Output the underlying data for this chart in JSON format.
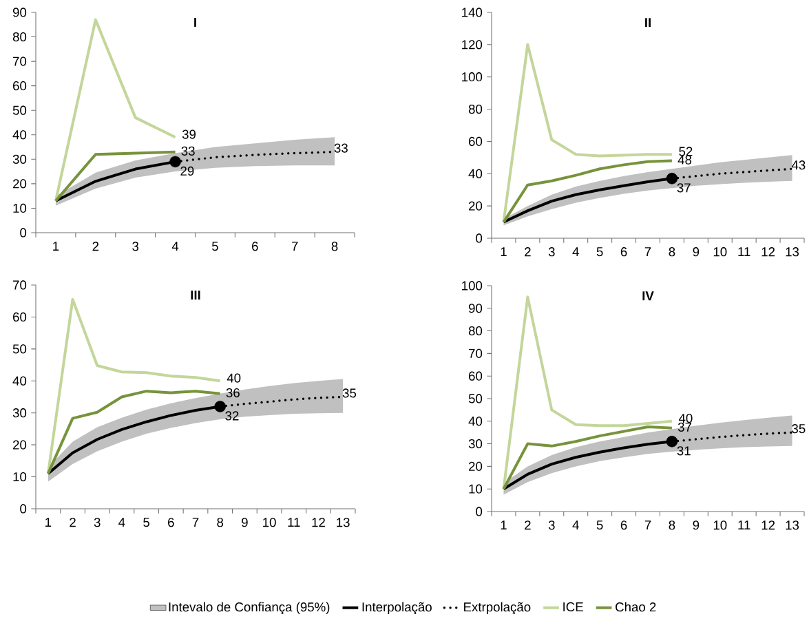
{
  "chart_data": [
    {
      "type": "line",
      "title": "I",
      "categories": [
        "1",
        "2",
        "3",
        "4",
        "5",
        "6",
        "7",
        "8"
      ],
      "ylim": [
        0,
        90
      ],
      "yticks": [
        0,
        10,
        20,
        30,
        40,
        50,
        60,
        70,
        80,
        90
      ],
      "series": [
        {
          "type": "line",
          "color": "#c0c0c0",
          "values": [
            null,
            null,
            null,
            null,
            null,
            null,
            null,
            null
          ],
          "lower": [
            11,
            18,
            22.5,
            25,
            26.5,
            27.2,
            27.5,
            27.5
          ],
          "upper": [
            15,
            24.5,
            29.5,
            32.5,
            35,
            36.5,
            38,
            39
          ]
        },
        {
          "type": "line",
          "color": "#000000",
          "values": [
            13,
            21,
            26,
            29,
            null,
            null,
            null,
            null
          ]
        },
        {
          "type": "line",
          "color": "#000000",
          "line_style": "dotted",
          "values": [
            null,
            null,
            null,
            29,
            30.8,
            31.8,
            32.5,
            33
          ]
        },
        {
          "type": "line",
          "color": "#c3d69b",
          "values": [
            13,
            87,
            47,
            39,
            null,
            null,
            null,
            null
          ]
        },
        {
          "type": "line",
          "color": "#77933c",
          "values": [
            13,
            32,
            32.5,
            33,
            null,
            null,
            null,
            null
          ]
        },
        {
          "type": "scatter",
          "color": "#000000",
          "marker": "circle",
          "values": [
            null,
            null,
            null,
            29,
            null,
            null,
            null,
            null
          ]
        }
      ],
      "annotations": [
        {
          "text": "39",
          "x": "4",
          "y": 39
        },
        {
          "text": "33",
          "x": "4",
          "y": 33
        },
        {
          "text": "29",
          "x": "4",
          "y": 29
        },
        {
          "text": "33",
          "x": "8",
          "y": 33
        }
      ]
    },
    {
      "type": "line",
      "title": "II",
      "categories": [
        "1",
        "2",
        "3",
        "4",
        "5",
        "6",
        "7",
        "8",
        "9",
        "10",
        "11",
        "12",
        "13"
      ],
      "ylim": [
        0,
        140
      ],
      "yticks": [
        0,
        20,
        40,
        60,
        80,
        100,
        120,
        140
      ],
      "series": [
        {
          "type": "line",
          "color": "#c0c0c0",
          "values": [
            null,
            null,
            null,
            null,
            null,
            null,
            null,
            null,
            null,
            null,
            null,
            null,
            null
          ],
          "lower": [
            8,
            13.5,
            18,
            22,
            25,
            27.5,
            29.5,
            31,
            32.5,
            33.5,
            34.3,
            35,
            35.5
          ],
          "upper": [
            12,
            20,
            27,
            32,
            35.5,
            38.5,
            41,
            43,
            45,
            47,
            48.5,
            50,
            51.5
          ]
        },
        {
          "type": "line",
          "color": "#000000",
          "values": [
            10,
            17,
            23,
            27,
            30,
            32.5,
            35,
            37,
            null,
            null,
            null,
            null,
            null
          ]
        },
        {
          "type": "line",
          "color": "#000000",
          "line_style": "dotted",
          "values": [
            null,
            null,
            null,
            null,
            null,
            null,
            null,
            37,
            38.5,
            40,
            41,
            42,
            43
          ]
        },
        {
          "type": "line",
          "color": "#c3d69b",
          "values": [
            10,
            120,
            61,
            52,
            51,
            51.5,
            52,
            52,
            null,
            null,
            null,
            null,
            null
          ]
        },
        {
          "type": "line",
          "color": "#77933c",
          "values": [
            10,
            33,
            35.5,
            39,
            43,
            45.5,
            47.5,
            48,
            null,
            null,
            null,
            null,
            null
          ]
        },
        {
          "type": "scatter",
          "color": "#000000",
          "marker": "circle",
          "values": [
            null,
            null,
            null,
            null,
            null,
            null,
            null,
            37,
            null,
            null,
            null,
            null,
            null
          ]
        }
      ],
      "annotations": [
        {
          "text": "52",
          "x": "8",
          "y": 52
        },
        {
          "text": "48",
          "x": "8",
          "y": 48
        },
        {
          "text": "37",
          "x": "8",
          "y": 37
        },
        {
          "text": "43",
          "x": "13",
          "y": 43
        }
      ]
    },
    {
      "type": "line",
      "title": "III",
      "categories": [
        "1",
        "2",
        "3",
        "4",
        "5",
        "6",
        "7",
        "8",
        "9",
        "10",
        "11",
        "12",
        "13"
      ],
      "ylim": [
        0,
        70
      ],
      "yticks": [
        0,
        10,
        20,
        30,
        40,
        50,
        60,
        70
      ],
      "legend": "bottom",
      "series": [
        {
          "name": "Intevalo de Confiança (95%)",
          "type": "line",
          "color": "#c0c0c0",
          "values": [
            null,
            null,
            null,
            null,
            null,
            null,
            null,
            null,
            null,
            null,
            null,
            null,
            null
          ],
          "lower": [
            8.5,
            14,
            18,
            21,
            23.5,
            25.3,
            26.8,
            28,
            28.8,
            29.3,
            29.7,
            29.9,
            30
          ],
          "upper": [
            13,
            21,
            25.5,
            28.5,
            31,
            33,
            34.6,
            36,
            37.3,
            38.4,
            39.3,
            40,
            40.6
          ]
        },
        {
          "name": "Interpolação",
          "type": "line",
          "color": "#000000",
          "values": [
            11,
            17.5,
            21.7,
            24.8,
            27.2,
            29.2,
            30.8,
            32,
            null,
            null,
            null,
            null,
            null
          ]
        },
        {
          "name": "Extrpolação",
          "type": "line",
          "color": "#000000",
          "line_style": "dotted",
          "values": [
            null,
            null,
            null,
            null,
            null,
            null,
            null,
            32,
            32.8,
            33.5,
            34.2,
            34.7,
            35
          ]
        },
        {
          "name": "ICE",
          "type": "line",
          "color": "#c3d69b",
          "values": [
            11,
            65.5,
            44.8,
            42.8,
            42.6,
            41.5,
            41.1,
            40,
            null,
            null,
            null,
            null,
            null
          ]
        },
        {
          "name": "Chao 2",
          "type": "line",
          "color": "#77933c",
          "values": [
            11,
            28.3,
            30.2,
            35,
            36.8,
            36.3,
            36.8,
            36,
            null,
            null,
            null,
            null,
            null
          ]
        },
        {
          "type": "scatter",
          "color": "#000000",
          "marker": "circle",
          "values": [
            null,
            null,
            null,
            null,
            null,
            null,
            null,
            32,
            null,
            null,
            null,
            null,
            null
          ]
        }
      ],
      "annotations": [
        {
          "text": "40",
          "x": "8",
          "y": 40
        },
        {
          "text": "36",
          "x": "8",
          "y": 36
        },
        {
          "text": "32",
          "x": "8",
          "y": 32
        },
        {
          "text": "35",
          "x": "13",
          "y": 35
        }
      ]
    },
    {
      "type": "line",
      "title": "IV",
      "categories": [
        "1",
        "2",
        "3",
        "4",
        "5",
        "6",
        "7",
        "8",
        "9",
        "10",
        "11",
        "12",
        "13"
      ],
      "ylim": [
        0,
        100
      ],
      "yticks": [
        0,
        10,
        20,
        30,
        40,
        50,
        60,
        70,
        80,
        90,
        100
      ],
      "series": [
        {
          "type": "line",
          "color": "#c0c0c0",
          "values": [
            null,
            null,
            null,
            null,
            null,
            null,
            null,
            null,
            null,
            null,
            null,
            null,
            null
          ],
          "lower": [
            7.5,
            13,
            17,
            20,
            22.3,
            24,
            25.5,
            26.5,
            27.3,
            28,
            28.5,
            28.8,
            29
          ],
          "upper": [
            12.5,
            20,
            25,
            28.5,
            31,
            33,
            35,
            36.5,
            38,
            39.3,
            40.5,
            41.5,
            42.5
          ]
        },
        {
          "type": "line",
          "color": "#000000",
          "values": [
            10,
            16.5,
            21,
            24,
            26.3,
            28.2,
            29.8,
            31,
            null,
            null,
            null,
            null,
            null
          ]
        },
        {
          "type": "line",
          "color": "#000000",
          "line_style": "dotted",
          "values": [
            null,
            null,
            null,
            null,
            null,
            null,
            null,
            31,
            32,
            33,
            33.8,
            34.5,
            35
          ]
        },
        {
          "type": "line",
          "color": "#c3d69b",
          "values": [
            10,
            95,
            45,
            38.5,
            38,
            38,
            39,
            40,
            null,
            null,
            null,
            null,
            null
          ]
        },
        {
          "type": "line",
          "color": "#77933c",
          "values": [
            10,
            30,
            29,
            31,
            33.5,
            35.5,
            37.5,
            37,
            null,
            null,
            null,
            null,
            null
          ]
        },
        {
          "type": "scatter",
          "color": "#000000",
          "marker": "circle",
          "values": [
            null,
            null,
            null,
            null,
            null,
            null,
            null,
            31,
            null,
            null,
            null,
            null,
            null
          ]
        }
      ],
      "annotations": [
        {
          "text": "40",
          "x": "8",
          "y": 40
        },
        {
          "text": "37",
          "x": "8",
          "y": 37
        },
        {
          "text": "31",
          "x": "8",
          "y": 31
        },
        {
          "text": "35",
          "x": "13",
          "y": 35
        }
      ]
    }
  ]
}
